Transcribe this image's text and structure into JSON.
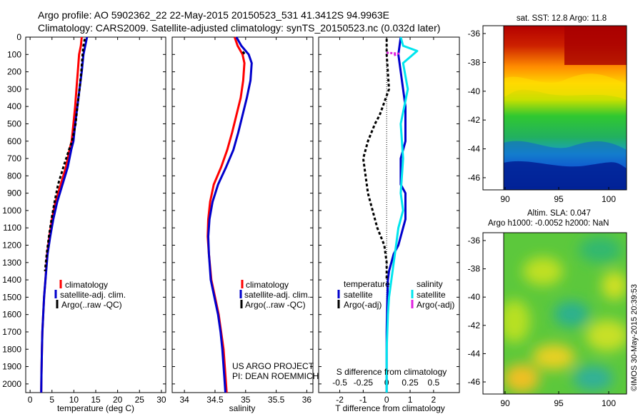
{
  "header": {
    "line1": "Argo profile: AO 5902362_22 22-May-2015 20150523_531 41.3412S 94.9963E",
    "line2": "Climatology: CARS2009. Satellite-adjusted climatology: synTS_20150523.nc (0.032d later)"
  },
  "colors": {
    "climatology": "#ff0000",
    "satellite": "#0000cc",
    "argo": "#000000",
    "sal_satellite": "#00e5ee",
    "sal_argo": "#e020e0"
  },
  "panels": {
    "temperature": {
      "xlabel": "temperature (deg C)",
      "legend": [
        "climatology",
        "satellite-adj. clim.",
        "Argo(..raw -QC)"
      ]
    },
    "salinity": {
      "xlabel": "salinity",
      "legend": [
        "climatology",
        "satellite-adj. clim.",
        "Argo(..raw -QC)"
      ],
      "credit1": "US ARGO PROJECT",
      "credit2": "PI: DEAN ROEMMICH"
    },
    "difference": {
      "xlabel": "T difference from climatology",
      "top_label": "S difference from climatology",
      "legend_t_title": "temperature",
      "legend_s_title": "salinity",
      "legend_t": [
        "satellite",
        "Argo(-adj)"
      ],
      "legend_s": [
        "satellite",
        "Argo(-adj)"
      ]
    }
  },
  "maps": {
    "sst_title": "sat. SST: 12.8 Argo: 11.8",
    "sla_title1": "Altim. SLA: 0.047",
    "sla_title2": "Argo h1000: -0.0052 h2000: NaN",
    "y_ticks": [
      "-36",
      "-38",
      "-40",
      "-42",
      "-44",
      "-46"
    ],
    "x_ticks": [
      "90",
      "95",
      "100"
    ],
    "watermark": "©IMOS 30-May-2015 20:39:53"
  },
  "chart_data": [
    {
      "type": "line",
      "title": "",
      "xlabel": "temperature (deg C)",
      "ylabel": "",
      "xlim": [
        -1,
        31
      ],
      "ylim": [
        2050,
        0
      ],
      "x_ticks": [
        0,
        5,
        10,
        15,
        20,
        25,
        30
      ],
      "y_ticks": [
        0,
        100,
        200,
        300,
        400,
        500,
        600,
        700,
        800,
        900,
        1000,
        1100,
        1200,
        1300,
        1400,
        1500,
        1600,
        1700,
        1800,
        1900,
        2000
      ],
      "series": [
        {
          "name": "climatology",
          "x": [
            11.8,
            11.6,
            11.2,
            10.9,
            10.6,
            10.3,
            9.9,
            9.5,
            9.0,
            8.2,
            7.0,
            5.8,
            5.0,
            4.4,
            3.9,
            3.5,
            3.2,
            3.0,
            2.8,
            2.7,
            2.6,
            2.55
          ],
          "y": [
            0,
            50,
            100,
            200,
            300,
            400,
            500,
            600,
            650,
            750,
            850,
            950,
            1050,
            1150,
            1250,
            1400,
            1500,
            1600,
            1700,
            1800,
            1950,
            2050
          ]
        },
        {
          "name": "satellite-adj. clim.",
          "x": [
            13.0,
            12.6,
            12.2,
            11.8,
            11.3,
            10.8,
            10.3,
            9.9,
            9.4,
            8.6,
            7.4,
            6.2,
            5.3,
            4.6,
            4.0,
            3.5,
            3.2,
            3.0,
            2.8,
            2.7,
            2.6,
            2.55
          ],
          "y": [
            0,
            50,
            100,
            200,
            300,
            400,
            500,
            600,
            650,
            750,
            850,
            950,
            1050,
            1150,
            1250,
            1400,
            1500,
            1600,
            1700,
            1800,
            1950,
            2050
          ]
        },
        {
          "name": "Argo(..raw -QC)",
          "x": [
            12.5,
            12.2,
            12.0,
            11.7,
            11.3,
            10.8,
            10.4,
            9.6,
            8.9,
            7.6,
            6.4,
            5.6,
            4.9,
            4.3,
            3.8,
            3.4
          ],
          "y": [
            10,
            50,
            100,
            200,
            300,
            400,
            500,
            600,
            650,
            750,
            850,
            950,
            1050,
            1150,
            1250,
            1350
          ]
        }
      ]
    },
    {
      "type": "line",
      "title": "",
      "xlabel": "salinity",
      "ylabel": "",
      "xlim": [
        33.8,
        36.1
      ],
      "ylim": [
        2050,
        0
      ],
      "x_ticks": [
        34,
        34.5,
        35,
        35.5,
        36
      ],
      "series": [
        {
          "name": "climatology",
          "x": [
            34.82,
            34.87,
            34.95,
            34.98,
            34.96,
            34.92,
            34.85,
            34.78,
            34.7,
            34.6,
            34.48,
            34.42,
            34.39,
            34.38,
            34.4,
            34.44,
            34.5,
            34.56,
            34.6,
            34.64,
            34.67,
            34.69
          ],
          "y": [
            0,
            50,
            100,
            150,
            250,
            350,
            450,
            550,
            650,
            750,
            850,
            950,
            1050,
            1150,
            1250,
            1400,
            1500,
            1600,
            1700,
            1800,
            1950,
            2050
          ]
        },
        {
          "name": "satellite-adj. clim.",
          "x": [
            34.85,
            34.93,
            35.05,
            35.1,
            35.08,
            35.02,
            34.95,
            34.88,
            34.8,
            34.68,
            34.55,
            34.46,
            34.41,
            34.39,
            34.4,
            34.43,
            34.49,
            34.55,
            34.59,
            34.62,
            34.65,
            34.67
          ],
          "y": [
            0,
            50,
            100,
            150,
            250,
            350,
            450,
            550,
            650,
            750,
            850,
            950,
            1050,
            1150,
            1250,
            1400,
            1500,
            1600,
            1700,
            1800,
            1950,
            2050
          ]
        },
        {
          "name": "Argo(..raw -QC)",
          "x": [
            34.95,
            34.97,
            34.98,
            35.0
          ],
          "y": [
            85,
            90,
            95,
            100
          ]
        }
      ]
    },
    {
      "type": "line",
      "title": "",
      "xlabel": "T difference from climatology",
      "ylabel": "",
      "xlim": [
        -2.9,
        3.1
      ],
      "ylim": [
        2050,
        0
      ],
      "x_ticks": [
        -2,
        -1,
        0,
        1,
        2
      ],
      "x2_label": "S difference from climatology",
      "x2_ticks": [
        -0.5,
        -0.25,
        0,
        0.25,
        0.5
      ],
      "series": [
        {
          "name": "temperature satellite",
          "x": [
            0.6,
            0.5,
            0.6,
            0.7,
            0.8,
            0.8,
            0.8,
            0.6,
            0.6,
            0.6,
            0.6,
            0.8,
            0.8,
            0.8,
            0.7,
            0.6,
            0.5,
            0.3,
            0.2,
            0.1,
            0.05,
            0.03,
            0.0,
            0.0,
            0.0
          ],
          "y": [
            0,
            100,
            200,
            300,
            400,
            500,
            600,
            700,
            750,
            800,
            850,
            900,
            1000,
            1050,
            1100,
            1150,
            1200,
            1250,
            1300,
            1350,
            1400,
            1500,
            1700,
            1900,
            2050
          ]
        },
        {
          "name": "temperature Argo(-adj)",
          "x": [
            0.0,
            0.0,
            0.1,
            -0.3,
            -0.5,
            -0.8,
            -1.0,
            -0.9,
            -0.8,
            -0.6,
            -0.4,
            -0.1,
            0.0,
            0.0
          ],
          "y": [
            10,
            100,
            300,
            450,
            500,
            600,
            700,
            800,
            900,
            1000,
            1100,
            1200,
            1300,
            1400
          ]
        },
        {
          "name": "salinity satellite",
          "x": [
            0.6,
            0.7,
            1.3,
            0.7,
            0.9,
            0.6,
            0.7,
            0.6,
            0.7,
            0.5,
            0.4,
            0.3,
            0.2,
            0.1,
            0.05,
            0.0,
            0.0
          ],
          "y": [
            0,
            50,
            80,
            150,
            300,
            500,
            700,
            900,
            1000,
            1100,
            1200,
            1300,
            1400,
            1500,
            1600,
            1800,
            2050
          ]
        },
        {
          "name": "salinity Argo(-adj)",
          "x": [
            0.0,
            0.5,
            0.3
          ],
          "y": [
            90,
            95,
            105
          ]
        }
      ]
    }
  ]
}
